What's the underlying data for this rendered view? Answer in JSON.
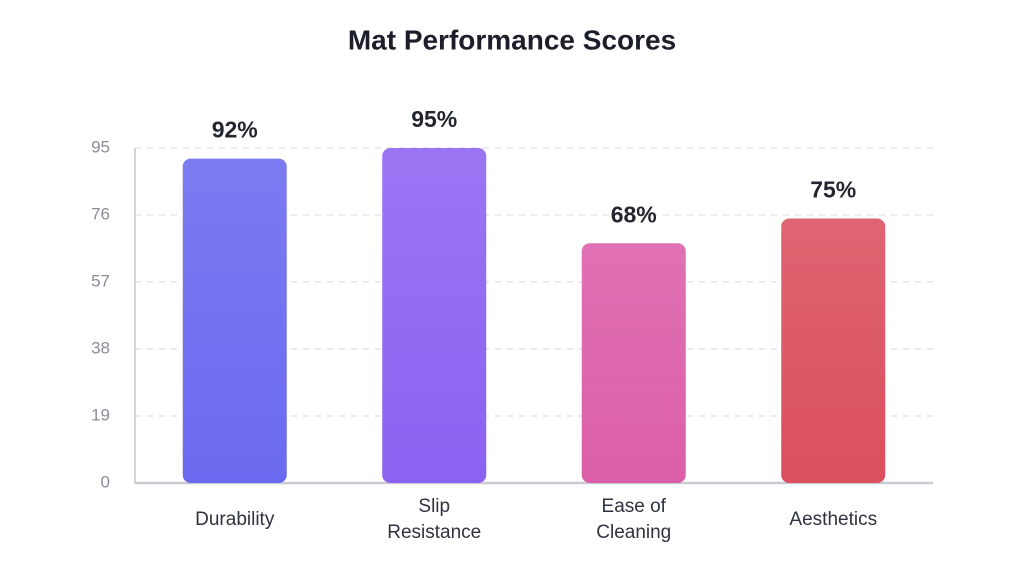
{
  "chart_data": {
    "type": "bar",
    "title": "Mat Performance Scores",
    "categories": [
      "Durability",
      "Slip Resistance",
      "Ease of Cleaning",
      "Aesthetics"
    ],
    "values": [
      92,
      95,
      68,
      75
    ],
    "value_labels": [
      "92%",
      "95%",
      "68%",
      "75%"
    ],
    "colors": [
      "#6b69ef",
      "#8c62f1",
      "#dc5ea8",
      "#db4f5e"
    ],
    "ylim": [
      0,
      95
    ],
    "yticks": [
      0,
      19,
      38,
      57,
      76,
      95
    ],
    "grid": true
  }
}
